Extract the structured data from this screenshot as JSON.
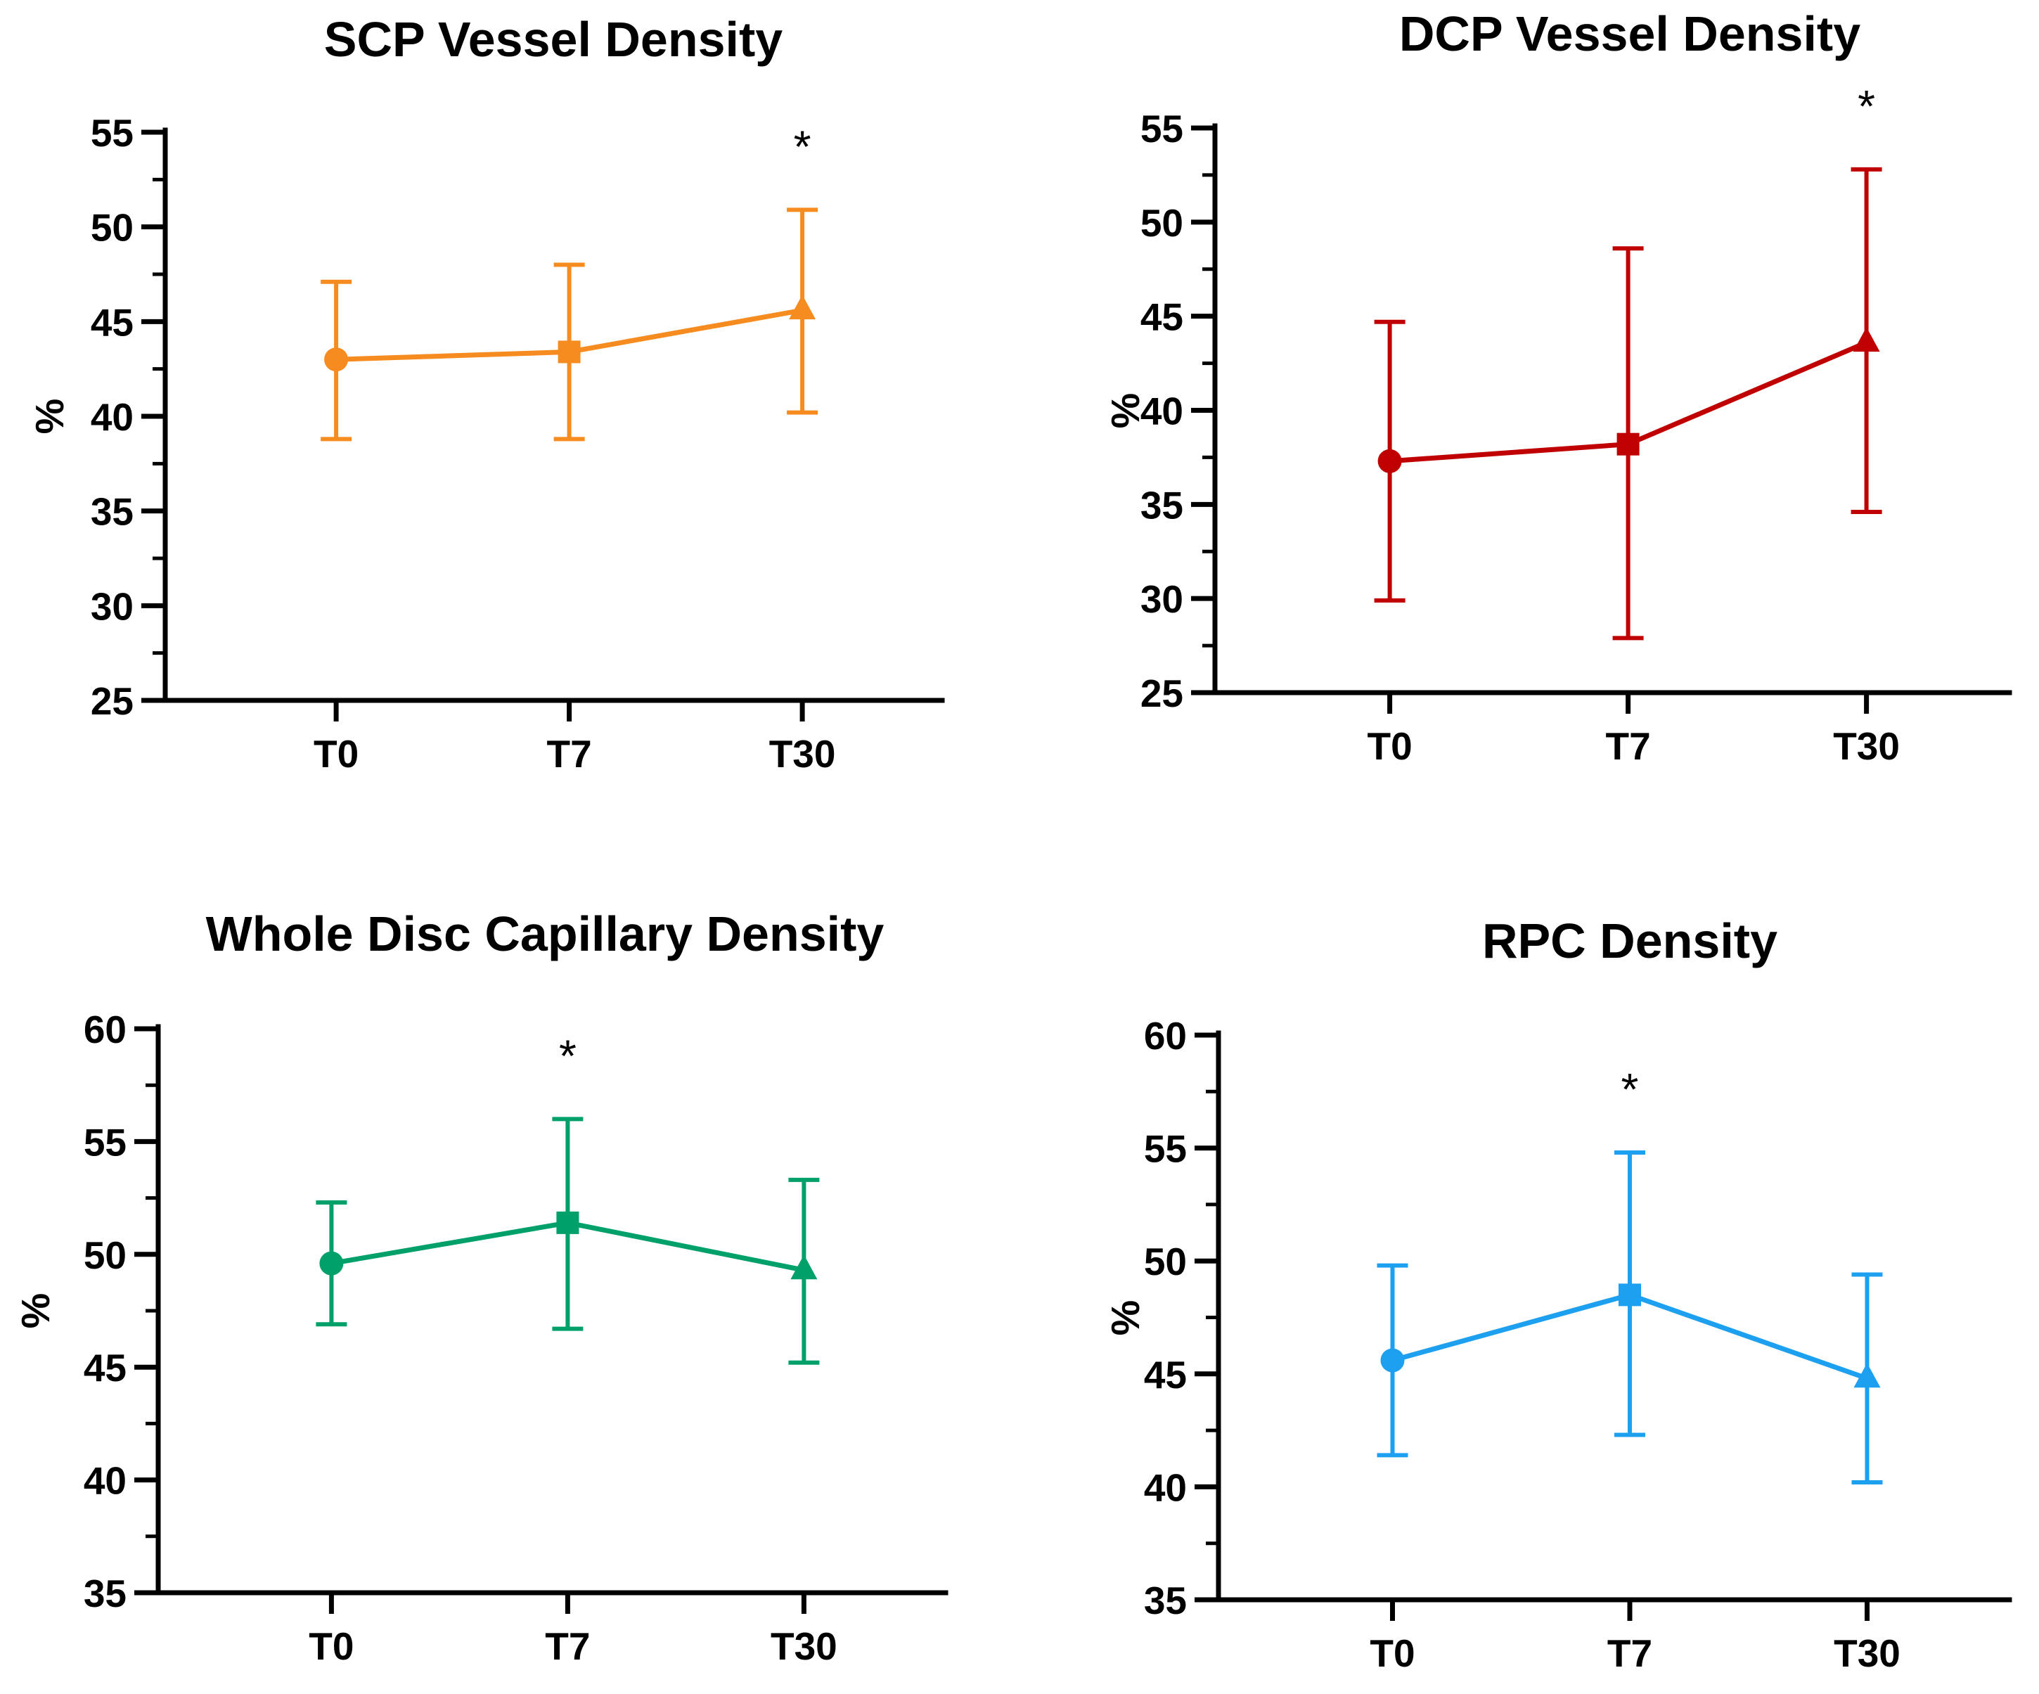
{
  "chart_data": [
    {
      "type": "line",
      "title": "SCP Vessel Density",
      "ylabel": "%",
      "xlabel": "",
      "categories": [
        "T0",
        "T7",
        "T30"
      ],
      "ylim": [
        25,
        55
      ],
      "yticks": [
        25,
        30,
        35,
        40,
        45,
        50,
        55
      ],
      "series": [
        {
          "values": [
            43.0,
            43.4,
            45.6
          ],
          "error_low": [
            38.8,
            38.8,
            40.2
          ],
          "error_high": [
            47.1,
            48.0,
            50.9
          ],
          "markers": [
            "circle",
            "square",
            "triangle"
          ],
          "color": "#F68B1F"
        }
      ],
      "annotations": [
        {
          "category": "T30",
          "text": "*"
        }
      ]
    },
    {
      "type": "line",
      "title": "DCP Vessel Density",
      "ylabel": "%",
      "xlabel": "",
      "categories": [
        "T0",
        "T7",
        "T30"
      ],
      "ylim": [
        25,
        55
      ],
      "yticks": [
        25,
        30,
        35,
        40,
        45,
        50,
        55
      ],
      "series": [
        {
          "values": [
            37.3,
            38.2,
            43.6
          ],
          "error_low": [
            29.9,
            27.9,
            34.6
          ],
          "error_high": [
            44.7,
            48.6,
            52.8
          ],
          "markers": [
            "circle",
            "square",
            "triangle"
          ],
          "color": "#C00000"
        }
      ],
      "annotations": [
        {
          "category": "T30",
          "text": "*"
        }
      ]
    },
    {
      "type": "line",
      "title": "Whole Disc Capillary Density",
      "ylabel": "%",
      "xlabel": "",
      "categories": [
        "T0",
        "T7",
        "T30"
      ],
      "ylim": [
        35,
        60
      ],
      "yticks": [
        35,
        40,
        45,
        50,
        55,
        60
      ],
      "series": [
        {
          "values": [
            49.6,
            51.4,
            49.3
          ],
          "error_low": [
            46.9,
            46.7,
            45.2
          ],
          "error_high": [
            52.3,
            56.0,
            53.3
          ],
          "markers": [
            "circle",
            "square",
            "triangle"
          ],
          "color": "#00A06A"
        }
      ],
      "annotations": [
        {
          "category": "T7",
          "text": "*"
        }
      ]
    },
    {
      "type": "line",
      "title": "RPC Density",
      "ylabel": "%",
      "xlabel": "",
      "categories": [
        "T0",
        "T7",
        "T30"
      ],
      "ylim": [
        35,
        60
      ],
      "yticks": [
        35,
        40,
        45,
        50,
        55,
        60
      ],
      "series": [
        {
          "values": [
            45.6,
            48.5,
            44.8
          ],
          "error_low": [
            41.4,
            42.3,
            40.2
          ],
          "error_high": [
            49.8,
            54.8,
            49.4
          ],
          "markers": [
            "circle",
            "square",
            "triangle"
          ],
          "color": "#1EA0F0"
        }
      ],
      "annotations": [
        {
          "category": "T7",
          "text": "*"
        }
      ]
    }
  ]
}
